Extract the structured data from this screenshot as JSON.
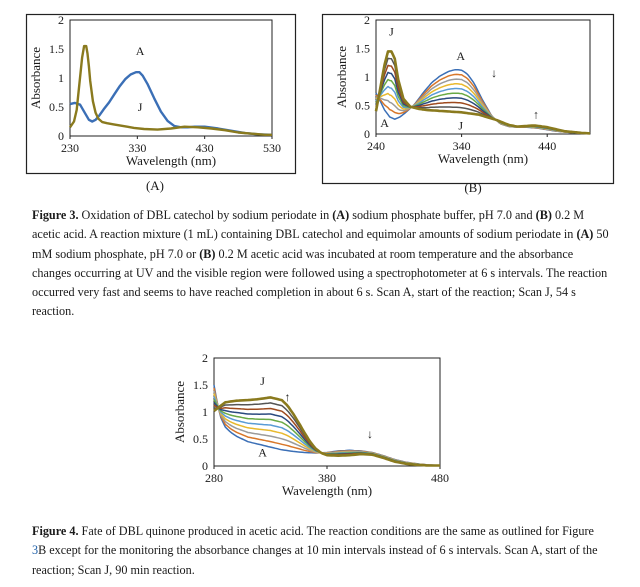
{
  "chart_data": [
    {
      "type": "line",
      "panel_label": "(A)",
      "xlabel": "Wavelength (nm)",
      "ylabel": "Absorbance",
      "xlim": [
        230,
        530
      ],
      "ylim": [
        0,
        2
      ],
      "xticks": [
        "230",
        "330",
        "430",
        "530"
      ],
      "yticks": [
        "0",
        "0.5",
        "1",
        "1.5",
        "2"
      ],
      "annotations": [
        {
          "text": "A",
          "x": 334,
          "y": 1.4
        },
        {
          "text": "J",
          "x": 334,
          "y": 0.43
        }
      ],
      "series": [
        {
          "name": "A",
          "color": "#3b6fb6",
          "x": [
            230,
            237,
            245,
            252,
            258,
            263,
            268,
            274,
            280,
            288,
            296,
            304,
            312,
            320,
            328,
            333,
            338,
            345,
            355,
            365,
            375,
            385,
            395,
            405,
            415,
            430,
            450,
            470,
            490,
            510,
            530
          ],
          "y": [
            0.55,
            0.57,
            0.54,
            0.4,
            0.28,
            0.25,
            0.28,
            0.36,
            0.46,
            0.58,
            0.72,
            0.86,
            0.98,
            1.06,
            1.1,
            1.1,
            1.04,
            0.9,
            0.65,
            0.42,
            0.26,
            0.17,
            0.15,
            0.15,
            0.16,
            0.16,
            0.13,
            0.09,
            0.05,
            0.03,
            0.02
          ]
        },
        {
          "name": "J",
          "color": "#8a7a1e",
          "x": [
            230,
            236,
            240,
            244,
            248,
            251,
            254,
            256,
            258,
            260,
            264,
            268,
            272,
            278,
            285,
            295,
            305,
            315,
            325,
            340,
            360,
            380,
            400,
            420,
            440,
            460,
            480,
            500,
            520,
            530
          ],
          "y": [
            0.15,
            0.25,
            0.45,
            0.9,
            1.35,
            1.55,
            1.55,
            1.42,
            1.2,
            0.95,
            0.6,
            0.4,
            0.3,
            0.24,
            0.22,
            0.2,
            0.18,
            0.16,
            0.14,
            0.12,
            0.11,
            0.13,
            0.16,
            0.15,
            0.13,
            0.1,
            0.06,
            0.04,
            0.02,
            0.02
          ]
        }
      ]
    },
    {
      "type": "line",
      "panel_label": "(B)",
      "xlabel": "Wavelength (nm)",
      "ylabel": "Absorbance",
      "xlim": [
        240,
        490
      ],
      "ylim": [
        0,
        2
      ],
      "xticks": [
        "240",
        "340",
        "440"
      ],
      "yticks": [
        "0",
        "0.5",
        "1",
        "1.5",
        "2"
      ],
      "annotations": [
        {
          "text": "J",
          "x": 258,
          "y": 1.73
        },
        {
          "text": "A",
          "x": 339,
          "y": 1.3
        },
        {
          "text": "↓",
          "x": 378,
          "y": 1.0
        },
        {
          "text": "A",
          "x": 250,
          "y": 0.12
        },
        {
          "text": "J",
          "x": 339,
          "y": 0.08
        },
        {
          "text": "↑",
          "x": 427,
          "y": 0.27
        }
      ],
      "series_count": 10,
      "series_colors": [
        "#3b6fb6",
        "#d8772a",
        "#9b9b9b",
        "#e8b92e",
        "#5a9bd5",
        "#6aaa45",
        "#2a4a7f",
        "#9e4a1e",
        "#555555",
        "#8a7a1e"
      ],
      "scan_A": {
        "x": [
          240,
          245,
          250,
          256,
          262,
          268,
          275,
          285,
          295,
          305,
          315,
          325,
          333,
          340,
          347,
          355,
          365,
          375,
          385,
          395,
          405,
          415,
          430,
          450,
          470,
          490
        ],
        "y": [
          0.72,
          0.58,
          0.42,
          0.3,
          0.26,
          0.3,
          0.38,
          0.52,
          0.72,
          0.9,
          1.02,
          1.1,
          1.13,
          1.12,
          1.05,
          0.88,
          0.58,
          0.32,
          0.18,
          0.13,
          0.12,
          0.12,
          0.1,
          0.05,
          0.02,
          0.01
        ]
      },
      "scan_J": {
        "x": [
          240,
          245,
          250,
          254,
          258,
          262,
          266,
          272,
          280,
          290,
          300,
          320,
          340,
          360,
          380,
          395,
          405,
          415,
          425,
          440,
          460,
          480,
          490
        ],
        "y": [
          0.4,
          0.8,
          1.22,
          1.45,
          1.45,
          1.32,
          0.95,
          0.62,
          0.48,
          0.44,
          0.42,
          0.4,
          0.38,
          0.34,
          0.25,
          0.16,
          0.13,
          0.14,
          0.15,
          0.12,
          0.05,
          0.02,
          0.01
        ]
      }
    },
    {
      "type": "line",
      "xlabel": "Wavelength (nm)",
      "ylabel": "Absorbance",
      "xlim": [
        280,
        480
      ],
      "ylim": [
        0,
        2
      ],
      "xticks": [
        "280",
        "380",
        "480"
      ],
      "yticks": [
        "0",
        "0.5",
        "1",
        "1.5",
        "2"
      ],
      "annotations": [
        {
          "text": "J",
          "x": 323,
          "y": 1.5
        },
        {
          "text": "↑",
          "x": 345,
          "y": 1.2
        },
        {
          "text": "↓",
          "x": 418,
          "y": 0.52
        },
        {
          "text": "A",
          "x": 323,
          "y": 0.18
        }
      ],
      "series_count": 10,
      "series_colors": [
        "#3b6fb6",
        "#d8772a",
        "#9b9b9b",
        "#e8b92e",
        "#5a9bd5",
        "#6aaa45",
        "#2a4a7f",
        "#9e4a1e",
        "#555555",
        "#8a7a1e"
      ],
      "scan_A": {
        "x": [
          280,
          283,
          286,
          290,
          295,
          300,
          310,
          320,
          330,
          340,
          350,
          360,
          370,
          380,
          390,
          400,
          410,
          420,
          430,
          440,
          450,
          460,
          470,
          480
        ],
        "y": [
          1.5,
          1.15,
          0.9,
          0.72,
          0.62,
          0.55,
          0.45,
          0.4,
          0.35,
          0.3,
          0.27,
          0.25,
          0.24,
          0.25,
          0.28,
          0.29,
          0.28,
          0.25,
          0.19,
          0.12,
          0.07,
          0.04,
          0.02,
          0.01
        ]
      },
      "scan_J": {
        "x": [
          280,
          285,
          290,
          300,
          310,
          320,
          330,
          340,
          345,
          350,
          355,
          360,
          365,
          370,
          375,
          380,
          390,
          400,
          410,
          420,
          430,
          440,
          450,
          460,
          470,
          480
        ],
        "y": [
          1.02,
          1.1,
          1.18,
          1.21,
          1.22,
          1.24,
          1.27,
          1.22,
          1.12,
          0.97,
          0.8,
          0.62,
          0.45,
          0.32,
          0.24,
          0.2,
          0.19,
          0.2,
          0.22,
          0.21,
          0.15,
          0.08,
          0.04,
          0.02,
          0.01,
          0.01
        ]
      }
    }
  ],
  "captions": {
    "fig3": {
      "label": "Figure 3.",
      "runs": [
        {
          "t": " Oxidation of DBL catechol by sodium periodate in "
        },
        {
          "t": "(A)",
          "b": true
        },
        {
          "t": " sodium phosphate buffer, pH 7.0 and "
        },
        {
          "t": "(B)",
          "b": true
        },
        {
          "t": " 0.2 M acetic acid.  A reaction mixture (1 mL) containing DBL catechol and equimolar amounts of sodium periodate in "
        },
        {
          "t": "(A)",
          "b": true
        },
        {
          "t": " 50 mM sodium phosphate, pH 7.0 or "
        },
        {
          "t": "(B)",
          "b": true
        },
        {
          "t": " 0.2 M acetic acid was incubated at room temperature and the absorbance changes occurring at UV and the visible region were followed using a spectrophotometer at 6 s intervals.  The reaction occurred very fast and seems to have reached completion in about 6 s.  Scan A, start of the reaction; Scan J, 54 s reaction."
        }
      ]
    },
    "fig4": {
      "label": "Figure 4.",
      "runs": [
        {
          "t": " Fate of DBL quinone produced in acetic acid.  The reaction conditions are the same as outlined for Figure "
        },
        {
          "t": "3",
          "link": true
        },
        {
          "t": "B except for the monitoring the absorbance changes at 10 min intervals instead of 6 s intervals.  Scan A, start of the reaction; Scan J, 90 min reaction."
        }
      ]
    }
  }
}
